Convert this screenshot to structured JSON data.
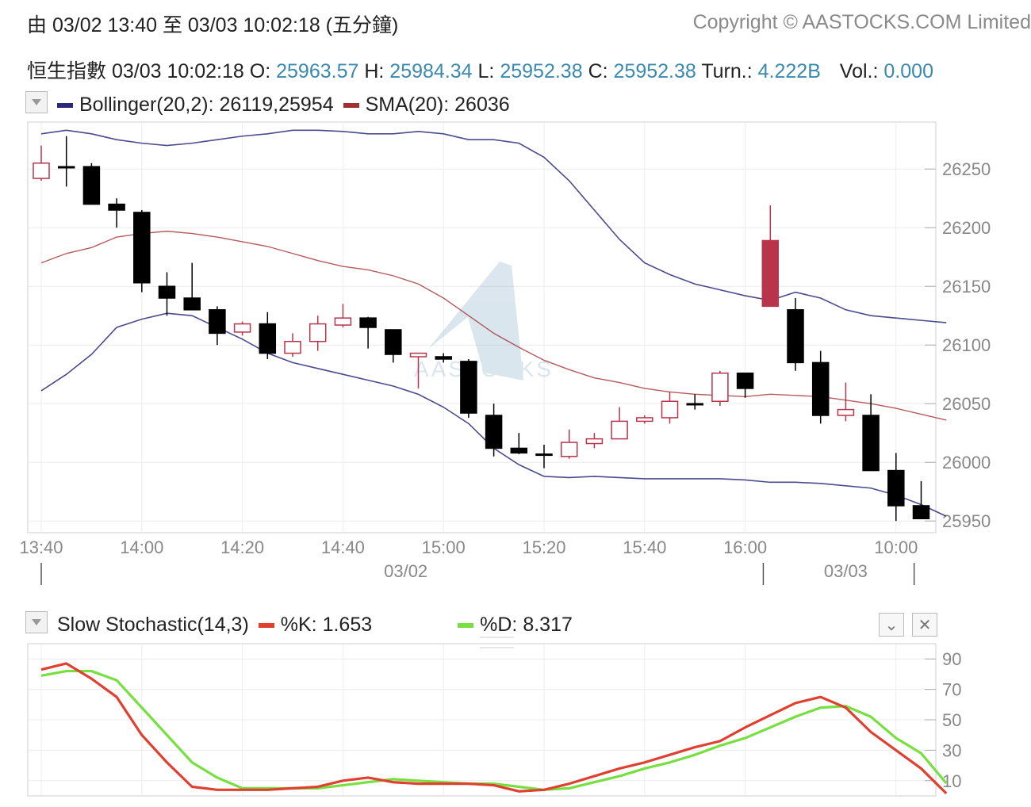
{
  "header": {
    "range_text": "由  03/02 13:40 至  03/03 10:02:18 (五分鐘)",
    "copyright": "Copyright © AASTOCKS.COM Limited"
  },
  "quote": {
    "name": "恒生指數",
    "time": "03/03 10:02:18",
    "open_label": "O:",
    "open": "25963.57",
    "high_label": "H:",
    "high": "25984.34",
    "low_label": "L:",
    "low": "25952.38",
    "close_label": "C:",
    "close": "25952.38",
    "turn_label": "Turn.:",
    "turn": "4.222B",
    "vol_label": "Vol.:",
    "vol": "0.000",
    "value_color": "#3a8ab0"
  },
  "main_legend": {
    "bollinger": "Bollinger(20,2): 26119,25954",
    "sma": "SMA(20): 26036",
    "bollinger_color": "#2b2a7a",
    "sma_color": "#a23232"
  },
  "stoch_legend": {
    "title": "Slow Stochastic(14,3)",
    "k": "%K: 1.653",
    "d": "%D: 8.317",
    "k_color": "#e04030",
    "d_color": "#77e040"
  },
  "icons": {
    "dropdown": "triangle-down-icon",
    "collapse": "chevron-down-icon",
    "close": "close-icon"
  },
  "chart_data": [
    {
      "type": "candlestick",
      "title": "恒生指數",
      "xlabel": "",
      "ylabel": "",
      "ylim": [
        25940,
        26290
      ],
      "y_ticks": [
        25950,
        26000,
        26050,
        26100,
        26150,
        26200,
        26250
      ],
      "x_tick_labels": [
        "13:40",
        "14:00",
        "14:20",
        "14:40",
        "15:00",
        "15:20",
        "15:40",
        "16:00",
        "10:00"
      ],
      "x_tick_index": [
        0,
        4,
        8,
        12,
        16,
        20,
        24,
        28,
        34
      ],
      "date_labels": [
        {
          "label": "03/02",
          "index": 14.5
        },
        {
          "label": "03/03",
          "index": 32
        }
      ],
      "day_separators": [
        0,
        29,
        35
      ],
      "watermark": "AASTOCKS",
      "up_color": "#b8344a",
      "down_color": "#000000",
      "candles": [
        {
          "time": "13:40",
          "o": 26242,
          "h": 26270,
          "l": 26240,
          "c": 26255
        },
        {
          "time": "13:45",
          "o": 26252,
          "h": 26278,
          "l": 26235,
          "c": 26252
        },
        {
          "time": "13:50",
          "o": 26252,
          "h": 26255,
          "l": 26220,
          "c": 26220
        },
        {
          "time": "13:55",
          "o": 26220,
          "h": 26225,
          "l": 26200,
          "c": 26215
        },
        {
          "time": "14:00",
          "o": 26213,
          "h": 26215,
          "l": 26145,
          "c": 26153
        },
        {
          "time": "14:05",
          "o": 26150,
          "h": 26162,
          "l": 26125,
          "c": 26140
        },
        {
          "time": "14:10",
          "o": 26140,
          "h": 26170,
          "l": 26130,
          "c": 26130
        },
        {
          "time": "14:15",
          "o": 26130,
          "h": 26133,
          "l": 26100,
          "c": 26110
        },
        {
          "time": "14:20",
          "o": 26111,
          "h": 26120,
          "l": 26108,
          "c": 26118
        },
        {
          "time": "14:25",
          "o": 26118,
          "h": 26128,
          "l": 26088,
          "c": 26093
        },
        {
          "time": "14:30",
          "o": 26093,
          "h": 26110,
          "l": 26090,
          "c": 26103
        },
        {
          "time": "14:35",
          "o": 26103,
          "h": 26125,
          "l": 26095,
          "c": 26118
        },
        {
          "time": "14:40",
          "o": 26117,
          "h": 26135,
          "l": 26115,
          "c": 26123
        },
        {
          "time": "14:45",
          "o": 26123,
          "h": 26124,
          "l": 26097,
          "c": 26115
        },
        {
          "time": "14:50",
          "o": 26113,
          "h": 26113,
          "l": 26085,
          "c": 26092
        },
        {
          "time": "14:55",
          "o": 26090,
          "h": 26093,
          "l": 26063,
          "c": 26093
        },
        {
          "time": "15:00",
          "o": 26090,
          "h": 26093,
          "l": 26085,
          "c": 26088
        },
        {
          "time": "15:05",
          "o": 26086,
          "h": 26088,
          "l": 26038,
          "c": 26042
        },
        {
          "time": "15:10",
          "o": 26040,
          "h": 26050,
          "l": 26005,
          "c": 26012
        },
        {
          "time": "15:15",
          "o": 26012,
          "h": 26025,
          "l": 26007,
          "c": 26008
        },
        {
          "time": "15:20",
          "o": 26007,
          "h": 26015,
          "l": 25995,
          "c": 26007
        },
        {
          "time": "15:25",
          "o": 26005,
          "h": 26028,
          "l": 26003,
          "c": 26017
        },
        {
          "time": "15:30",
          "o": 26016,
          "h": 26025,
          "l": 26012,
          "c": 26020
        },
        {
          "time": "15:35",
          "o": 26020,
          "h": 26047,
          "l": 26020,
          "c": 26035
        },
        {
          "time": "15:40",
          "o": 26035,
          "h": 26040,
          "l": 26033,
          "c": 26038
        },
        {
          "time": "15:45",
          "o": 26038,
          "h": 26060,
          "l": 26033,
          "c": 26052
        },
        {
          "time": "15:50",
          "o": 26050,
          "h": 26058,
          "l": 26045,
          "c": 26050
        },
        {
          "time": "15:55",
          "o": 26052,
          "h": 26078,
          "l": 26048,
          "c": 26076
        },
        {
          "time": "16:00",
          "o": 26076,
          "h": 26076,
          "l": 26055,
          "c": 26063
        },
        {
          "time": "09:30",
          "o": 26133,
          "h": 26219,
          "l": 26133,
          "c": 26189
        },
        {
          "time": "09:35",
          "o": 26130,
          "h": 26140,
          "l": 26078,
          "c": 26085
        },
        {
          "time": "09:40",
          "o": 26085,
          "h": 26095,
          "l": 26033,
          "c": 26040
        },
        {
          "time": "09:45",
          "o": 26040,
          "h": 26068,
          "l": 26035,
          "c": 26045
        },
        {
          "time": "09:50",
          "o": 26040,
          "h": 26058,
          "l": 25993,
          "c": 25993
        },
        {
          "time": "09:55",
          "o": 25993,
          "h": 26008,
          "l": 25950,
          "c": 25963
        },
        {
          "time": "10:00",
          "o": 25963,
          "h": 25984,
          "l": 25952,
          "c": 25952
        }
      ],
      "series": [
        {
          "name": "Bollinger(20,2)",
          "role": "upper",
          "color": "#2b2a7a",
          "values": [
            26280,
            26283,
            26280,
            26275,
            26272,
            26270,
            26272,
            26275,
            26278,
            26280,
            26283,
            26283,
            26282,
            26280,
            26280,
            26282,
            26280,
            26275,
            26275,
            26272,
            26260,
            26240,
            26215,
            26190,
            26170,
            26160,
            26152,
            26147,
            26142,
            26138,
            26145,
            26140,
            26130,
            26125,
            26123,
            26121,
            26119
          ]
        },
        {
          "name": "Bollinger(20,2)",
          "role": "lower",
          "color": "#2b2a7a",
          "values": [
            26061,
            26075,
            26092,
            26115,
            26122,
            26127,
            26125,
            26115,
            26105,
            26093,
            26085,
            26080,
            26075,
            26070,
            26065,
            26058,
            26047,
            26033,
            26012,
            25998,
            25988,
            25987,
            25988,
            25987,
            25986,
            25986,
            25986,
            25986,
            25985,
            25983,
            25983,
            25982,
            25980,
            25978,
            25972,
            25964,
            25954
          ]
        },
        {
          "name": "SMA(20)",
          "color": "#a23232",
          "values": [
            26170,
            26178,
            26183,
            26192,
            26195,
            26197,
            26195,
            26192,
            26188,
            26184,
            26178,
            26172,
            26167,
            26164,
            26159,
            26152,
            26140,
            26125,
            26110,
            26098,
            26087,
            26079,
            26072,
            26068,
            26063,
            26060,
            26058,
            26057,
            26056,
            26058,
            26057,
            26056,
            26053,
            26050,
            26046,
            26041,
            26036
          ]
        }
      ]
    },
    {
      "type": "line",
      "title": "Slow Stochastic(14,3)",
      "xlabel": "",
      "ylabel": "",
      "ylim": [
        0,
        100
      ],
      "y_tick_labels": [
        "90",
        "70",
        "50",
        "30",
        "10"
      ],
      "y_ticks": [
        90,
        70,
        50,
        30,
        10
      ],
      "series": [
        {
          "name": "%K",
          "color": "#e04030",
          "values": [
            83,
            87,
            77,
            65,
            40,
            22,
            6,
            4,
            4,
            4,
            5,
            6,
            10,
            12,
            9,
            8,
            8,
            8,
            7,
            3,
            4,
            8,
            13,
            18,
            22,
            27,
            32,
            36,
            45,
            53,
            61,
            65,
            58,
            42,
            30,
            18,
            1.653
          ]
        },
        {
          "name": "%D",
          "color": "#77e040",
          "values": [
            79,
            82,
            82,
            76,
            58,
            40,
            22,
            12,
            5,
            5,
            5,
            5,
            7,
            9,
            11,
            10,
            9,
            8,
            8,
            6,
            4,
            5,
            9,
            13,
            18,
            22,
            27,
            33,
            38,
            45,
            52,
            58,
            59,
            52,
            38,
            28,
            8.317
          ]
        }
      ]
    }
  ]
}
